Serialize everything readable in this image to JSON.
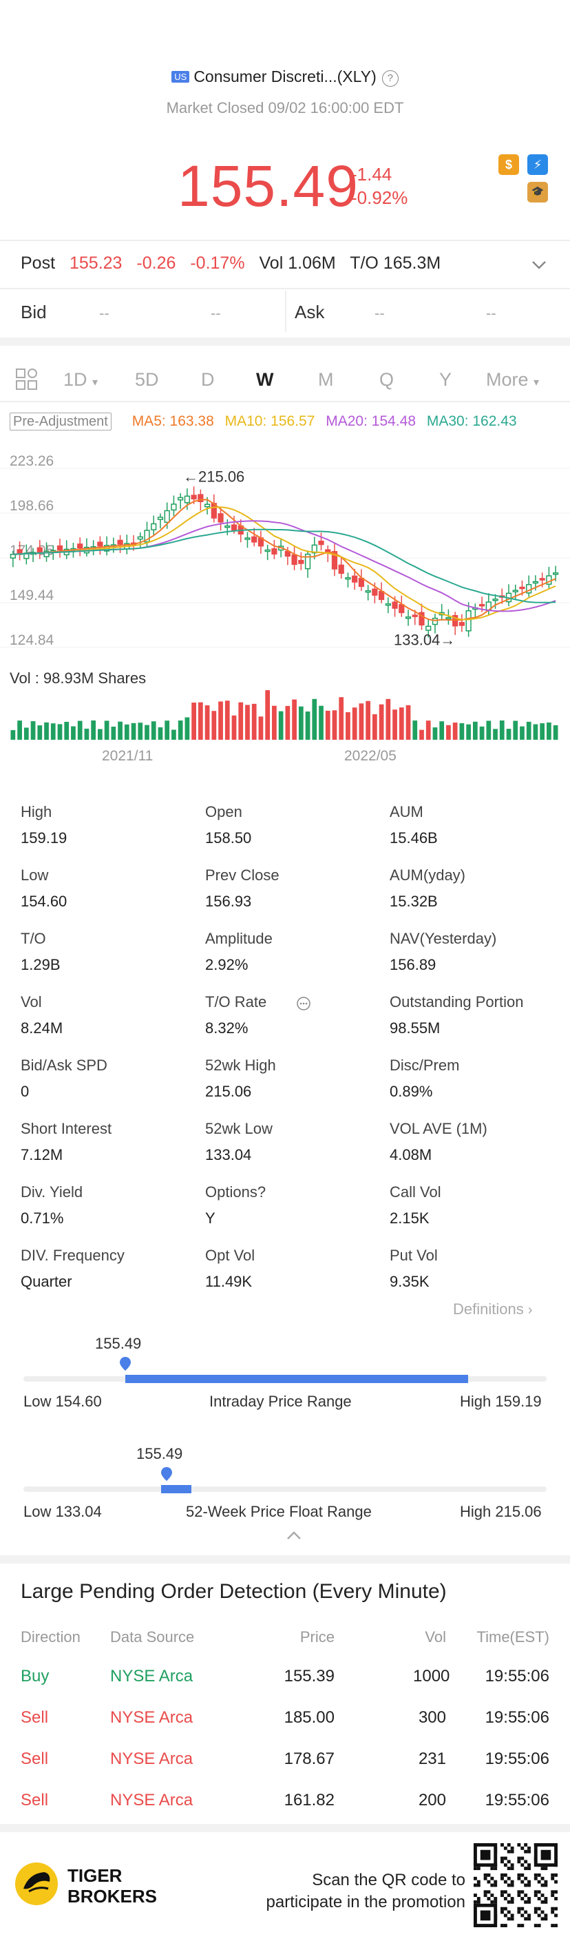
{
  "header": {
    "market_flag": "US",
    "title": "Consumer Discreti...(XLY)",
    "help": "?",
    "status": "Market Closed 09/02 16:00:00 EDT",
    "price": "155.49",
    "change": "-1.44",
    "change_pct": "-0.92%"
  },
  "post": {
    "label": "Post",
    "price": "155.23",
    "change": "-0.26",
    "change_pct": "-0.17%",
    "vol": "Vol 1.06M",
    "turnover": "T/O 165.3M"
  },
  "bidask": {
    "bid_label": "Bid",
    "ask_label": "Ask",
    "dash": "--"
  },
  "tabs": [
    "1D",
    "5D",
    "D",
    "W",
    "M",
    "Q",
    "Y",
    "More"
  ],
  "ma": {
    "adjust": "Pre-Adjustment",
    "ma5": "MA5: 163.38",
    "ma10": "MA10: 156.57",
    "ma20": "MA20: 154.48",
    "ma30": "MA30: 162.43"
  },
  "chart": {
    "y_ticks": [
      "223.26",
      "198.66",
      "174.05",
      "149.44",
      "124.84"
    ],
    "high_annotation": "215.06",
    "low_annotation": "133.04",
    "volume_label": "Vol  : 98.93M Shares",
    "x_ticks": [
      "2021/11",
      "2022/05"
    ]
  },
  "chart_data": {
    "type": "candlestick",
    "ylim": [
      124.84,
      223.26
    ],
    "x": [
      "2021/11",
      "2022/05"
    ],
    "annotations": [
      {
        "label": "215.06"
      },
      {
        "label": "133.04"
      }
    ],
    "ma": {
      "MA5": 163.38,
      "MA10": 156.57,
      "MA20": 154.48,
      "MA30": 162.43
    },
    "volume_total": "98.93M Shares"
  },
  "stats": [
    [
      {
        "label": "High",
        "value": "159.19"
      },
      {
        "label": "Open",
        "value": "158.50"
      },
      {
        "label": "AUM",
        "value": "15.46B"
      }
    ],
    [
      {
        "label": "Low",
        "value": "154.60"
      },
      {
        "label": "Prev Close",
        "value": "156.93"
      },
      {
        "label": "AUM(yday)",
        "value": "15.32B"
      }
    ],
    [
      {
        "label": "T/O",
        "value": "1.29B"
      },
      {
        "label": "Amplitude",
        "value": "2.92%"
      },
      {
        "label": "NAV(Yesterday)",
        "value": "156.89"
      }
    ],
    [
      {
        "label": "Vol",
        "value": "8.24M"
      },
      {
        "label": "T/O Rate",
        "value": "8.32%"
      },
      {
        "label": "Outstanding Portion",
        "value": "98.55M"
      }
    ],
    [
      {
        "label": "Bid/Ask SPD",
        "value": "0"
      },
      {
        "label": "52wk High",
        "value": "215.06"
      },
      {
        "label": "Disc/Prem",
        "value": "0.89%"
      }
    ],
    [
      {
        "label": "Short Interest",
        "value": "7.12M"
      },
      {
        "label": "52wk Low",
        "value": "133.04"
      },
      {
        "label": "VOL AVE (1M)",
        "value": "4.08M"
      }
    ],
    [
      {
        "label": "Div. Yield",
        "value": "0.71%"
      },
      {
        "label": "Options?",
        "value": "Y"
      },
      {
        "label": "Call Vol",
        "value": "2.15K"
      }
    ],
    [
      {
        "label": "DIV. Frequency",
        "value": "Quarter"
      },
      {
        "label": "Opt Vol",
        "value": "11.49K"
      },
      {
        "label": "Put Vol",
        "value": "9.35K"
      }
    ]
  ],
  "definitions": "Definitions",
  "intraday_range": {
    "current": "155.49",
    "low": "Low 154.60",
    "title": "Intraday Price Range",
    "high": "High 159.19",
    "position": 0.193
  },
  "week52_range": {
    "current": "155.49",
    "low": "Low 133.04",
    "title": "52-Week Price Float Range",
    "high": "High 215.06",
    "position": 0.274
  },
  "pending_orders": {
    "title": "Large Pending Order Detection (Every Minute)",
    "headers": [
      "Direction",
      "Data Source",
      "Price",
      "Vol",
      "Time(EST)"
    ],
    "rows": [
      {
        "direction": "Buy",
        "source": "NYSE Arca",
        "price": "155.39",
        "vol": "1000",
        "time": "19:55:06"
      },
      {
        "direction": "Sell",
        "source": "NYSE Arca",
        "price": "185.00",
        "vol": "300",
        "time": "19:55:06"
      },
      {
        "direction": "Sell",
        "source": "NYSE Arca",
        "price": "178.67",
        "vol": "231",
        "time": "19:55:06"
      },
      {
        "direction": "Sell",
        "source": "NYSE Arca",
        "price": "161.82",
        "vol": "200",
        "time": "19:55:06"
      }
    ]
  },
  "footer": {
    "brand_line1": "TIGER",
    "brand_line2": "BROKERS",
    "promo_line1": "Scan the QR code to",
    "promo_line2": "participate in the promotion"
  },
  "colors": {
    "up": "#ea4b4b",
    "down": "#20a060",
    "accent": "#4a7fe8",
    "ma5": "#f07a2a",
    "ma10": "#e8b818",
    "ma20": "#b45ad8",
    "ma30": "#2aa890"
  }
}
